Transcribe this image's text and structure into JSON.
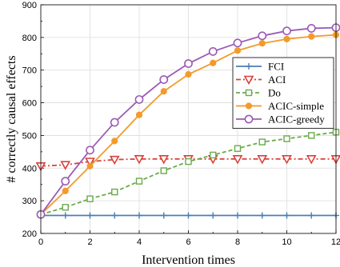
{
  "chart_data": {
    "type": "line",
    "title": "",
    "xlabel": "Intervention times",
    "ylabel": "# correctly causal effects",
    "xlim": [
      0,
      12
    ],
    "ylim": [
      200,
      900
    ],
    "xticks": [
      0,
      2,
      4,
      6,
      8,
      10,
      12
    ],
    "yticks": [
      200,
      300,
      400,
      500,
      600,
      700,
      800,
      900
    ],
    "grid": true,
    "legend_position": "center-right",
    "x": [
      0,
      1,
      2,
      3,
      4,
      5,
      6,
      7,
      8,
      9,
      10,
      11,
      12
    ],
    "series": [
      {
        "name": "FCI",
        "color": "#4a7fb0",
        "dash": "solid",
        "marker": "plus",
        "values": [
          255,
          255,
          255,
          255,
          255,
          255,
          255,
          255,
          255,
          255,
          255,
          255,
          255
        ]
      },
      {
        "name": "ACI",
        "color": "#d9413a",
        "dash": "dashdot",
        "marker": "triangle-down",
        "values": [
          406,
          410,
          420,
          426,
          428,
          428,
          428,
          428,
          428,
          428,
          428,
          428,
          428
        ]
      },
      {
        "name": "Do",
        "color": "#6aaa4a",
        "dash": "dashed",
        "marker": "square",
        "values": [
          258,
          280,
          306,
          327,
          360,
          392,
          420,
          440,
          460,
          480,
          490,
          500,
          510
        ]
      },
      {
        "name": "ACIC-simple",
        "color": "#f39a2b",
        "dash": "solid",
        "marker": "circle-filled",
        "values": [
          258,
          330,
          406,
          483,
          563,
          635,
          687,
          722,
          760,
          782,
          795,
          803,
          808
        ]
      },
      {
        "name": "ACIC-greedy",
        "color": "#9b5bb5",
        "dash": "solid",
        "marker": "circle-open",
        "values": [
          258,
          360,
          455,
          540,
          610,
          671,
          720,
          757,
          783,
          805,
          820,
          828,
          830
        ]
      }
    ]
  }
}
